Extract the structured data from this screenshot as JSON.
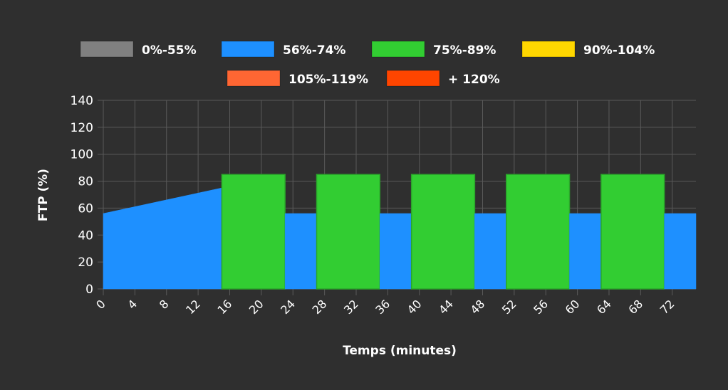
{
  "chart_data": {
    "type": "area",
    "title": "",
    "xlabel": "Temps (minutes)",
    "ylabel": "FTP (%)",
    "xlim": [
      0,
      75
    ],
    "ylim": [
      0,
      140
    ],
    "xticks": [
      0,
      4,
      8,
      12,
      16,
      20,
      24,
      28,
      32,
      36,
      40,
      44,
      48,
      52,
      56,
      60,
      64,
      68,
      72
    ],
    "yticks": [
      0,
      20,
      40,
      60,
      80,
      100,
      120,
      140
    ],
    "grid": true,
    "legend_position": "top",
    "legend": [
      {
        "label": "0%-55%",
        "color": "#808080"
      },
      {
        "label": "56%-74%",
        "color": "#1e90ff"
      },
      {
        "label": "75%-89%",
        "color": "#32cd32"
      },
      {
        "label": "90%-104%",
        "color": "#ffd700"
      },
      {
        "label": "105%-119%",
        "color": "#ff6633"
      },
      {
        "label": "+ 120%",
        "color": "#ff4500"
      }
    ],
    "segments": [
      {
        "start": 0,
        "end": 15,
        "from": 56,
        "to": 75,
        "zone": "56%-74%"
      },
      {
        "start": 15,
        "end": 23,
        "from": 85,
        "to": 85,
        "zone": "75%-89%"
      },
      {
        "start": 23,
        "end": 27,
        "from": 56,
        "to": 56,
        "zone": "56%-74%"
      },
      {
        "start": 27,
        "end": 35,
        "from": 85,
        "to": 85,
        "zone": "75%-89%"
      },
      {
        "start": 35,
        "end": 39,
        "from": 56,
        "to": 56,
        "zone": "56%-74%"
      },
      {
        "start": 39,
        "end": 47,
        "from": 85,
        "to": 85,
        "zone": "75%-89%"
      },
      {
        "start": 47,
        "end": 51,
        "from": 56,
        "to": 56,
        "zone": "56%-74%"
      },
      {
        "start": 51,
        "end": 59,
        "from": 85,
        "to": 85,
        "zone": "75%-89%"
      },
      {
        "start": 59,
        "end": 63,
        "from": 56,
        "to": 56,
        "zone": "56%-74%"
      },
      {
        "start": 63,
        "end": 71,
        "from": 85,
        "to": 85,
        "zone": "75%-89%"
      },
      {
        "start": 71,
        "end": 75,
        "from": 56,
        "to": 56,
        "zone": "56%-74%"
      }
    ]
  }
}
